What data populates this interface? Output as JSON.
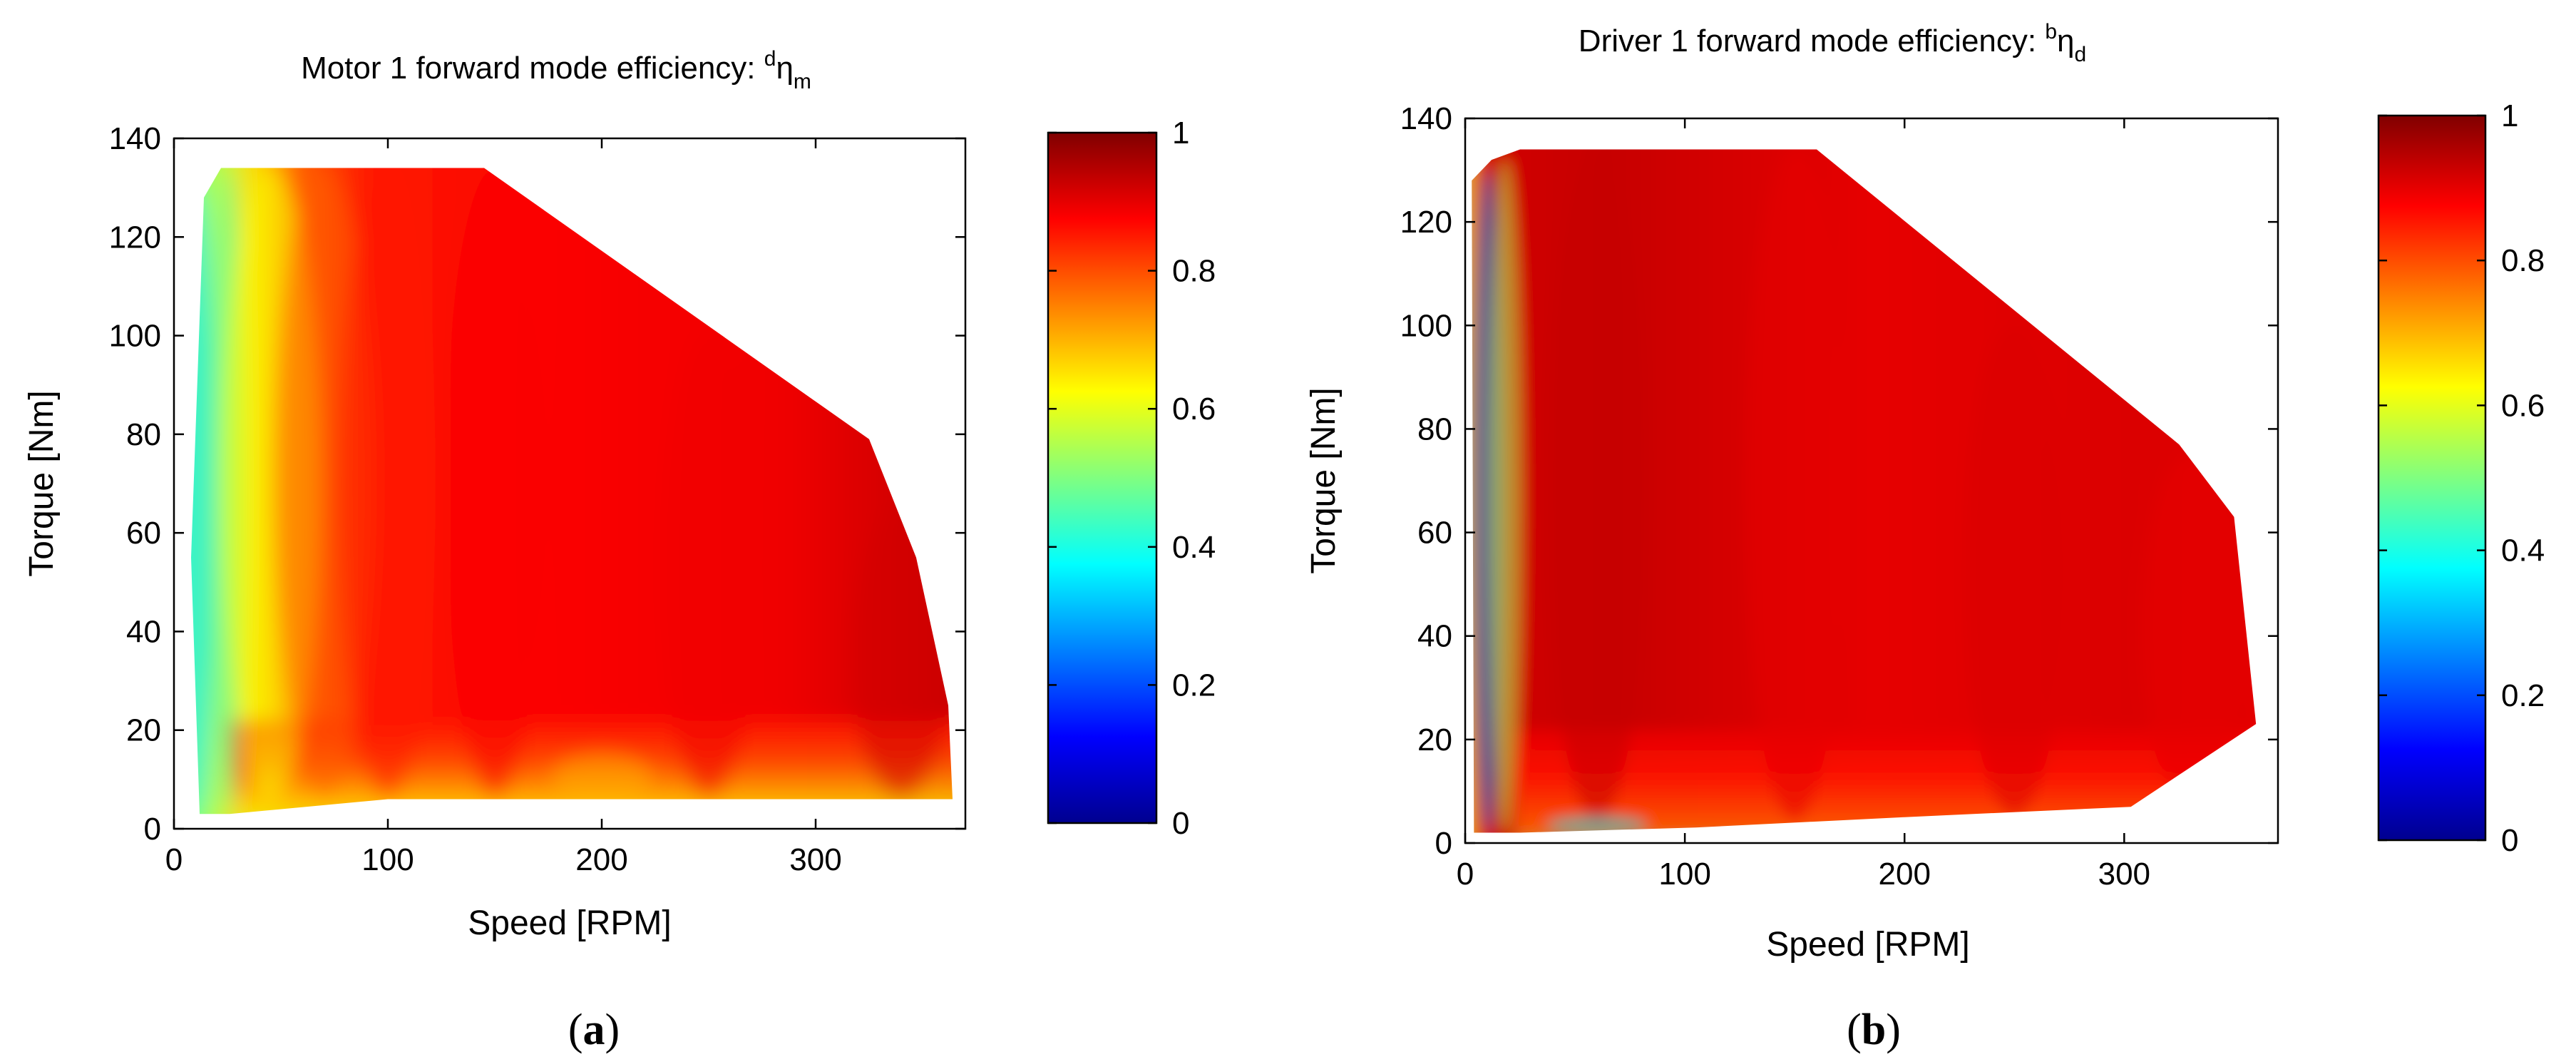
{
  "figure": {
    "captions": [
      {
        "open": "(",
        "letter": "a",
        "close": ")"
      },
      {
        "open": "(",
        "letter": "b",
        "close": ")"
      }
    ]
  },
  "colormap": [
    "#00008f",
    "#0000ff",
    "#0080ff",
    "#00ffff",
    "#80ff80",
    "#ffff00",
    "#ff8000",
    "#ff0000",
    "#800000"
  ],
  "chart_data": [
    {
      "type": "heatmap",
      "title": {
        "main": "Motor 1 forward mode efficiency: ",
        "sup": "d",
        "symbol": "η",
        "sub": "m"
      },
      "xlabel": "Speed [RPM]",
      "ylabel": "Torque [Nm]",
      "xlim": [
        0,
        370
      ],
      "ylim": [
        0,
        140
      ],
      "xticks": [
        0,
        100,
        200,
        300
      ],
      "yticks": [
        0,
        20,
        40,
        60,
        80,
        100,
        120,
        140
      ],
      "colorbar": {
        "range": [
          0,
          1
        ],
        "ticks": [
          0,
          0.2,
          0.4,
          0.6,
          0.8,
          1
        ],
        "tick_labels": [
          "0",
          "0.2",
          "0.4",
          "0.6",
          "0.8",
          "1"
        ]
      },
      "region_boundary": [
        [
          12,
          3
        ],
        [
          8,
          55
        ],
        [
          14,
          128
        ],
        [
          22,
          134
        ],
        [
          145,
          134
        ],
        [
          325,
          79
        ],
        [
          347,
          55
        ],
        [
          362,
          25
        ],
        [
          364,
          6
        ],
        [
          210,
          6
        ],
        [
          100,
          6
        ],
        [
          26,
          3
        ]
      ],
      "efficiency_map": [
        {
          "speed": 12,
          "torque_range": [
            3,
            130
          ],
          "efficiency": 0.35
        },
        {
          "speed": 25,
          "torque_range": [
            3,
            134
          ],
          "efficiency": 0.45
        },
        {
          "speed": 45,
          "torque_range": [
            6,
            134
          ],
          "efficiency": 0.62
        },
        {
          "speed": 70,
          "torque_range": [
            6,
            134
          ],
          "efficiency": 0.78
        },
        {
          "speed": 100,
          "torque_range": [
            6,
            134
          ],
          "efficiency": 0.85
        },
        {
          "speed": 150,
          "torque_range": [
            6,
            134
          ],
          "efficiency": 0.88
        },
        {
          "speed": 250,
          "torque_range": [
            6,
            100
          ],
          "efficiency": 0.89
        },
        {
          "speed": 340,
          "torque_range": [
            6,
            65
          ],
          "efficiency": 0.92
        },
        {
          "speed": 200,
          "torque_range": [
            6,
            15
          ],
          "efficiency": 0.7
        }
      ]
    },
    {
      "type": "heatmap",
      "title": {
        "main": "Driver 1 forward mode efficiency: ",
        "sup": "b",
        "symbol": "η",
        "sub": "d"
      },
      "xlabel": "Speed [RPM]",
      "ylabel": "Torque [Nm]",
      "xlim": [
        0,
        370
      ],
      "ylim": [
        0,
        140
      ],
      "xticks": [
        0,
        100,
        200,
        300
      ],
      "yticks": [
        0,
        20,
        40,
        60,
        80,
        100,
        120,
        140
      ],
      "colorbar": {
        "range": [
          0,
          1
        ],
        "ticks": [
          0,
          0.2,
          0.4,
          0.6,
          0.8,
          1
        ],
        "tick_labels": [
          "0",
          "0.2",
          "0.4",
          "0.6",
          "0.8",
          "1"
        ]
      },
      "region_boundary": [
        [
          4,
          2
        ],
        [
          3,
          128
        ],
        [
          12,
          132
        ],
        [
          25,
          134
        ],
        [
          160,
          134
        ],
        [
          325,
          77
        ],
        [
          350,
          63
        ],
        [
          360,
          23
        ],
        [
          303,
          7
        ],
        [
          200,
          5
        ],
        [
          105,
          3
        ],
        [
          25,
          2
        ]
      ],
      "efficiency_map": [
        {
          "speed": 10,
          "torque_range": [
            2,
            130
          ],
          "efficiency": 0.25
        },
        {
          "speed": 18,
          "torque_range": [
            2,
            132
          ],
          "efficiency": 0.55
        },
        {
          "speed": 60,
          "torque_range": [
            4,
            134
          ],
          "efficiency": 0.93
        },
        {
          "speed": 150,
          "torque_range": [
            4,
            134
          ],
          "efficiency": 0.9
        },
        {
          "speed": 250,
          "torque_range": [
            5,
            100
          ],
          "efficiency": 0.91
        },
        {
          "speed": 330,
          "torque_range": [
            8,
            75
          ],
          "efficiency": 0.9
        },
        {
          "speed": 60,
          "torque_range": [
            2,
            5
          ],
          "efficiency": 0.35
        }
      ]
    }
  ]
}
